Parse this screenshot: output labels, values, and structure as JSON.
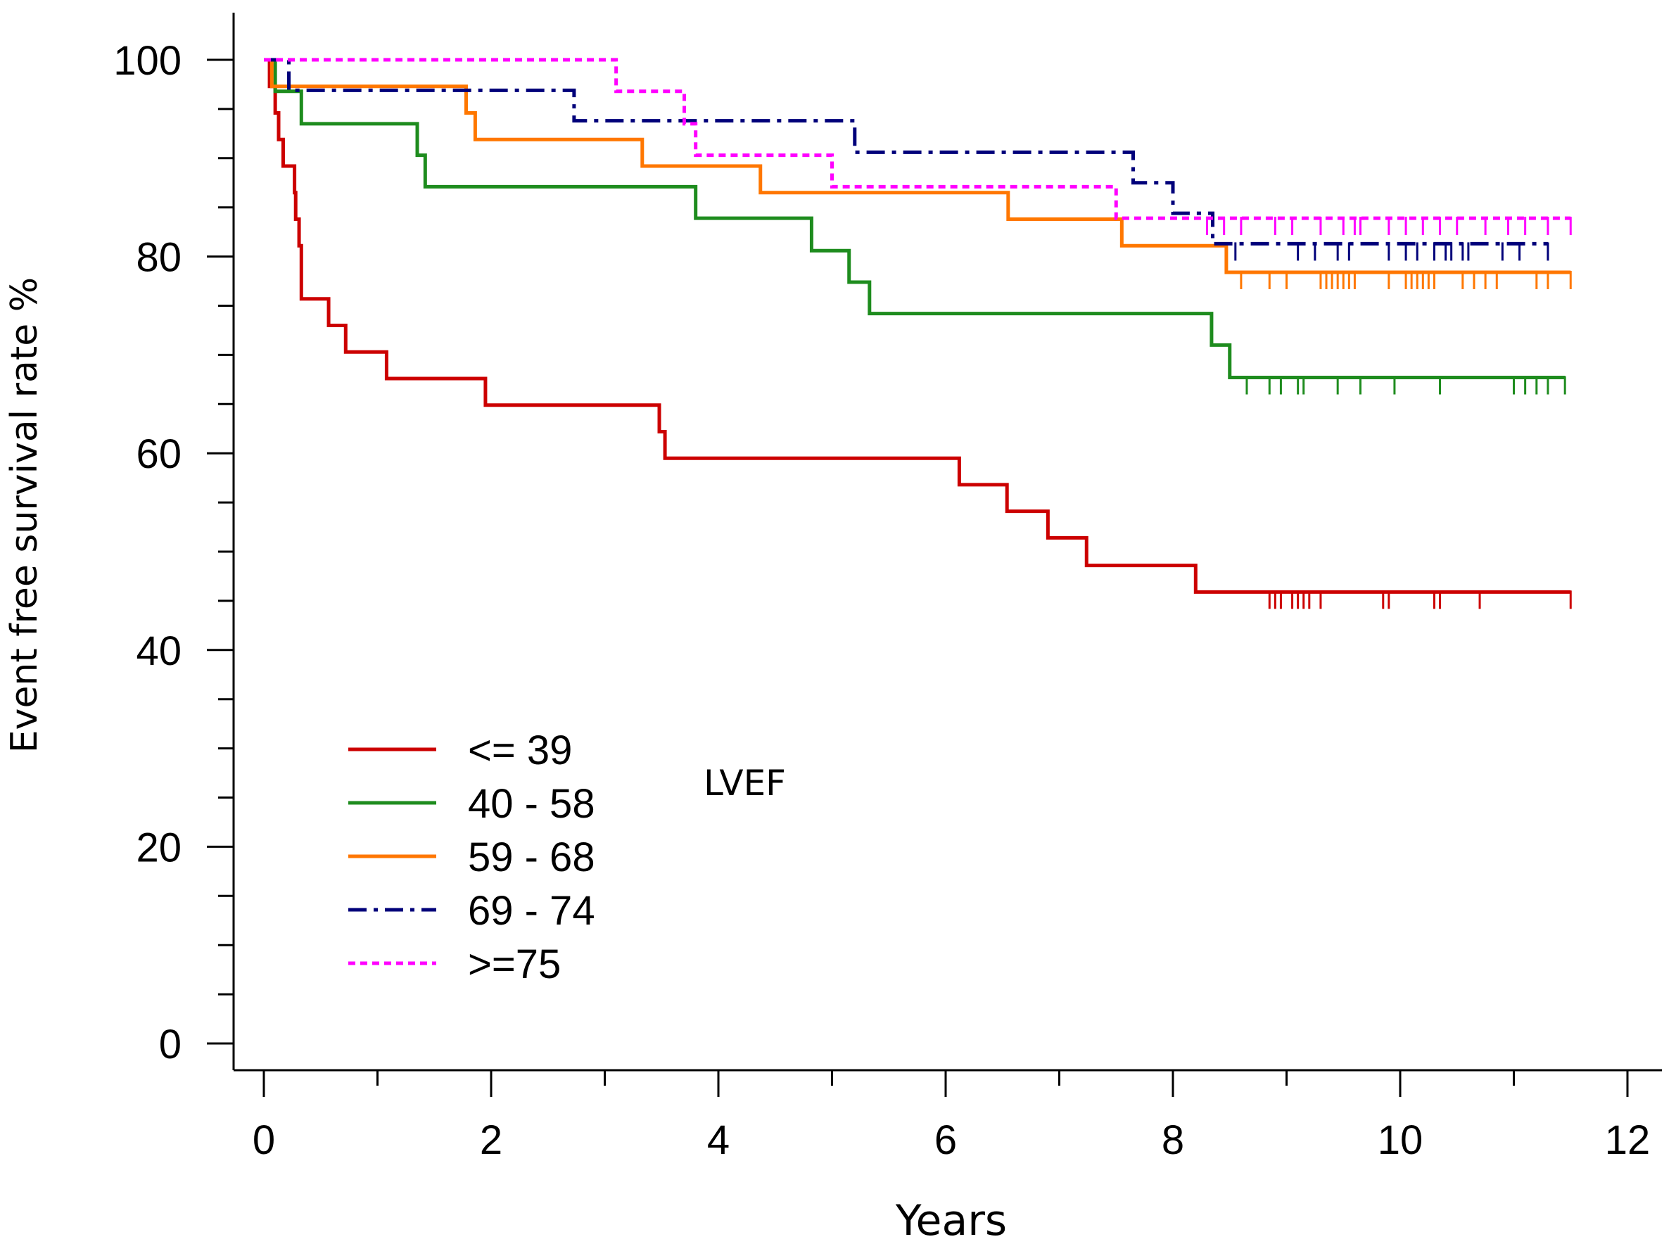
{
  "chart_data": {
    "type": "line",
    "subtype": "kaplan-meier",
    "xlabel": "Years",
    "ylabel": "Event free survival rate %",
    "xlim": [
      0,
      12
    ],
    "ylim": [
      0,
      100
    ],
    "xticks": [
      0,
      2,
      4,
      6,
      8,
      10,
      12
    ],
    "yticks": [
      0,
      20,
      40,
      60,
      80,
      100
    ],
    "x_minor_step": 1,
    "y_minor_step": 5,
    "legend_title": "LVEF",
    "legend_position": "lower-left",
    "series": [
      {
        "name": "<= 39",
        "color": "#cc0000",
        "dash": "solid",
        "steps": [
          [
            0,
            100
          ],
          [
            0.05,
            97.3
          ],
          [
            0.1,
            94.6
          ],
          [
            0.13,
            91.9
          ],
          [
            0.17,
            89.2
          ],
          [
            0.27,
            86.5
          ],
          [
            0.28,
            83.8
          ],
          [
            0.31,
            81.1
          ],
          [
            0.33,
            75.7
          ],
          [
            0.57,
            73.0
          ],
          [
            0.72,
            70.3
          ],
          [
            1.08,
            67.6
          ],
          [
            1.95,
            64.9
          ],
          [
            3.48,
            62.2
          ],
          [
            3.53,
            59.5
          ],
          [
            6.12,
            56.8
          ],
          [
            6.54,
            54.1
          ],
          [
            6.9,
            51.4
          ],
          [
            7.24,
            48.6
          ],
          [
            8.2,
            45.9
          ]
        ],
        "end_x": 11.5,
        "censor_x": [
          8.85,
          8.9,
          8.95,
          9.05,
          9.1,
          9.15,
          9.2,
          9.3,
          9.85,
          9.9,
          10.3,
          10.35,
          10.7,
          11.5
        ]
      },
      {
        "name": "40 - 58",
        "color": "#1e8c1e",
        "dash": "solid",
        "steps": [
          [
            0,
            100
          ],
          [
            0.1,
            96.8
          ],
          [
            0.33,
            93.5
          ],
          [
            1.35,
            90.3
          ],
          [
            1.42,
            87.1
          ],
          [
            3.8,
            83.9
          ],
          [
            4.82,
            80.6
          ],
          [
            5.15,
            77.4
          ],
          [
            5.33,
            74.2
          ],
          [
            8.34,
            71.0
          ],
          [
            8.5,
            67.7
          ]
        ],
        "end_x": 11.45,
        "censor_x": [
          8.65,
          8.85,
          8.95,
          9.1,
          9.15,
          9.45,
          9.65,
          9.95,
          10.35,
          11.0,
          11.1,
          11.2,
          11.3,
          11.45
        ]
      },
      {
        "name": "59 - 68",
        "color": "#ff7700",
        "dash": "solid",
        "steps": [
          [
            0,
            100
          ],
          [
            0.07,
            97.3
          ],
          [
            1.78,
            94.6
          ],
          [
            1.86,
            91.9
          ],
          [
            3.33,
            89.2
          ],
          [
            4.37,
            86.5
          ],
          [
            6.55,
            83.8
          ],
          [
            7.55,
            81.1
          ],
          [
            8.47,
            78.4
          ]
        ],
        "end_x": 11.5,
        "censor_x": [
          8.6,
          8.85,
          9.0,
          9.3,
          9.35,
          9.4,
          9.45,
          9.5,
          9.55,
          9.6,
          9.9,
          10.05,
          10.1,
          10.15,
          10.2,
          10.25,
          10.3,
          10.55,
          10.65,
          10.75,
          10.85,
          11.2,
          11.3,
          11.5
        ]
      },
      {
        "name": "69 - 74",
        "color": "#00007a",
        "dash": "dashdot",
        "steps": [
          [
            0,
            100
          ],
          [
            0.22,
            96.9
          ],
          [
            2.73,
            93.8
          ],
          [
            5.2,
            90.6
          ],
          [
            7.65,
            87.5
          ],
          [
            8.0,
            84.4
          ],
          [
            8.35,
            81.3
          ]
        ],
        "end_x": 11.3,
        "censor_x": [
          8.55,
          9.1,
          9.25,
          9.45,
          9.55,
          9.9,
          10.05,
          10.15,
          10.3,
          10.4,
          10.45,
          10.55,
          10.6,
          10.9,
          11.05,
          11.3
        ]
      },
      {
        "name": ">=75",
        "color": "#ff00ff",
        "dash": "dotted",
        "steps": [
          [
            0,
            100
          ],
          [
            3.1,
            96.8
          ],
          [
            3.7,
            93.5
          ],
          [
            3.8,
            90.3
          ],
          [
            5.0,
            87.1
          ],
          [
            7.5,
            83.9
          ]
        ],
        "end_x": 11.5,
        "censor_x": [
          8.3,
          8.45,
          8.6,
          8.9,
          9.05,
          9.3,
          9.5,
          9.6,
          9.65,
          9.9,
          10.05,
          10.2,
          10.35,
          10.5,
          10.75,
          10.95,
          11.1,
          11.3,
          11.5
        ]
      }
    ]
  }
}
